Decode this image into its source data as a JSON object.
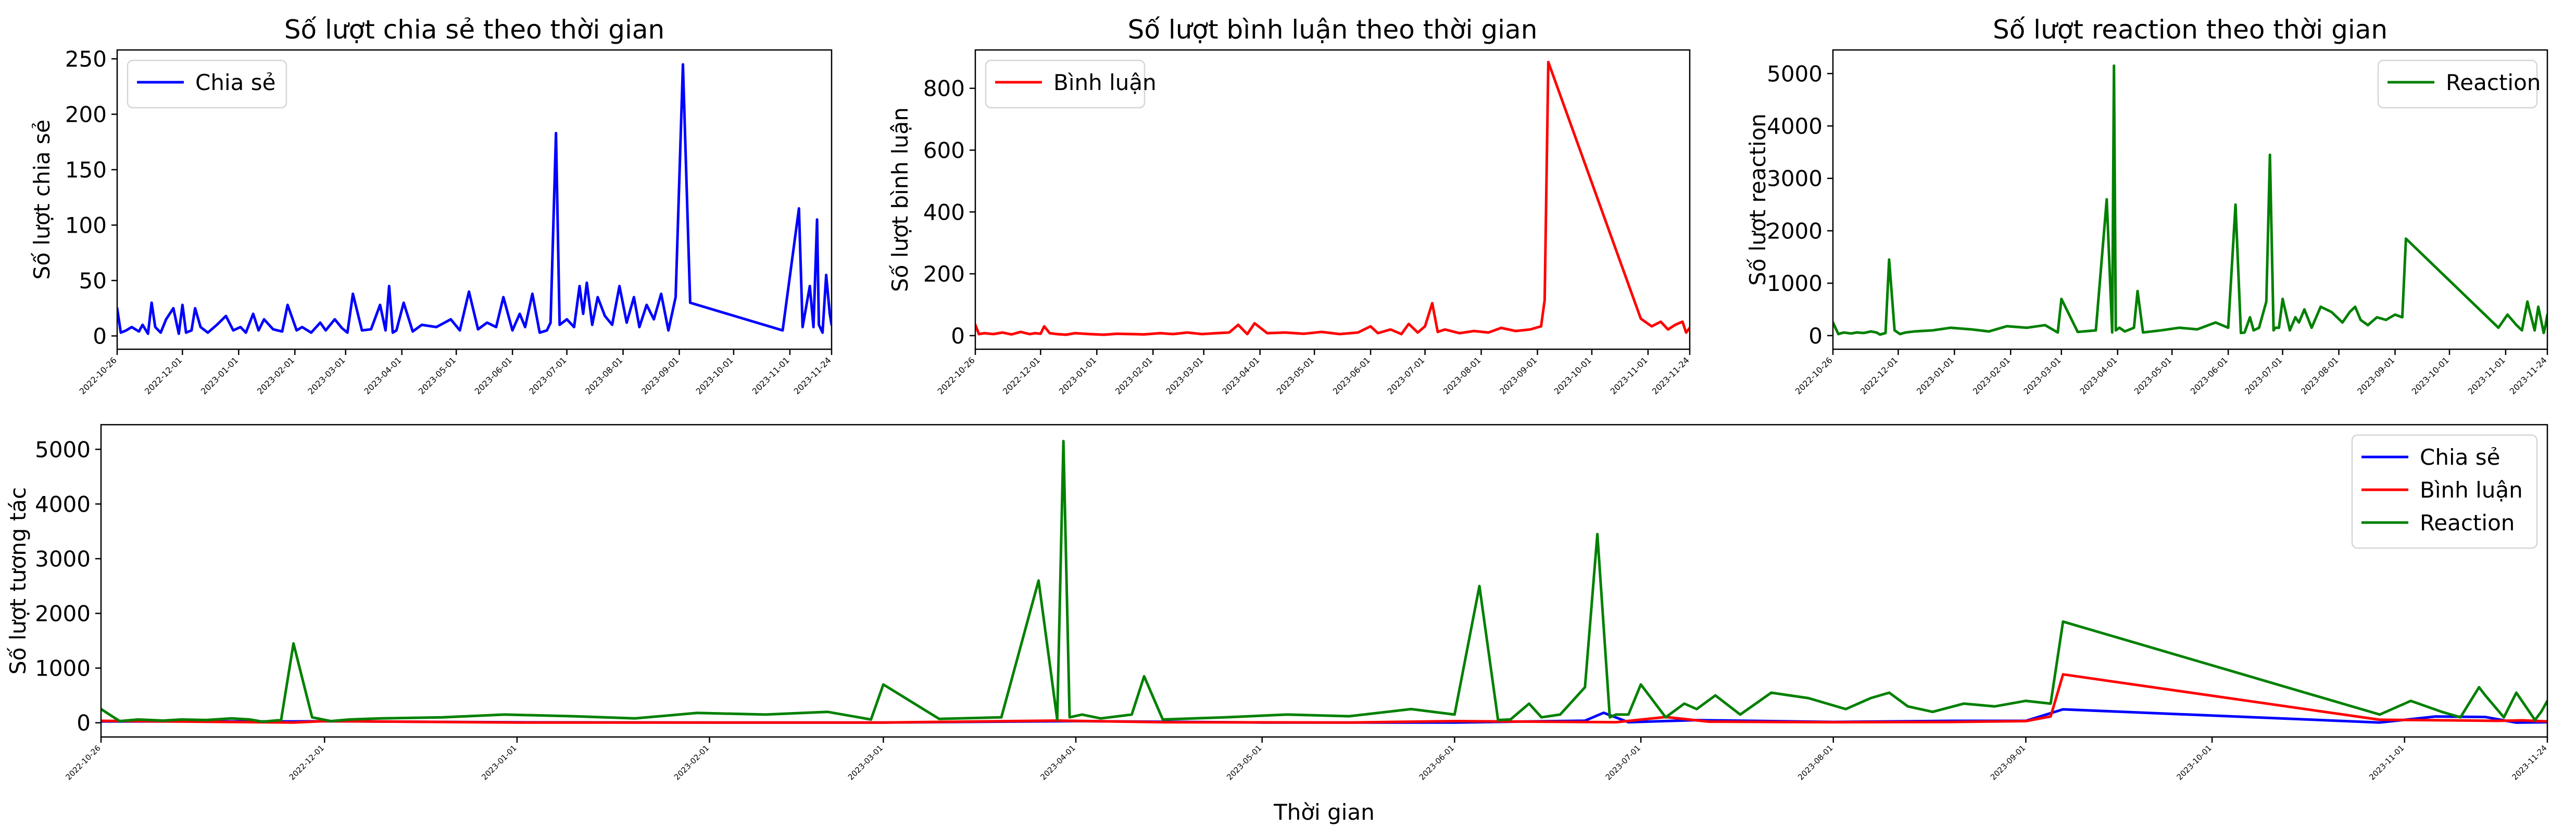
{
  "chart_data": [
    {
      "type": "line",
      "title": "Số lượt chia sẻ theo thời gian",
      "xlabel": "",
      "ylabel": "Số lượt chia sẻ",
      "xlim": [
        "2022-10-26",
        "2023-11-24"
      ],
      "ylim": [
        -12,
        258
      ],
      "yticks": [
        0,
        50,
        100,
        150,
        200,
        250
      ],
      "xticks": [
        "2022-10-26",
        "2022-12-01",
        "2023-01-01",
        "2023-02-01",
        "2023-03-01",
        "2023-04-01",
        "2023-05-01",
        "2023-06-01",
        "2023-07-01",
        "2023-08-01",
        "2023-09-01",
        "2023-10-01",
        "2023-11-01",
        "2023-11-24"
      ],
      "legend": "top-left",
      "grid": false,
      "series": [
        {
          "name": "Chia sẻ",
          "color": "#0000ff",
          "x": [
            "2022-10-26",
            "2022-10-28",
            "2022-10-31",
            "2022-11-03",
            "2022-11-07",
            "2022-11-09",
            "2022-11-12",
            "2022-11-14",
            "2022-11-16",
            "2022-11-19",
            "2022-11-22",
            "2022-11-26",
            "2022-11-29",
            "2022-12-01",
            "2022-12-03",
            "2022-12-06",
            "2022-12-08",
            "2022-12-11",
            "2022-12-15",
            "2022-12-20",
            "2022-12-25",
            "2022-12-29",
            "2023-01-02",
            "2023-01-05",
            "2023-01-09",
            "2023-01-12",
            "2023-01-15",
            "2023-01-20",
            "2023-01-25",
            "2023-01-28",
            "2023-02-02",
            "2023-02-05",
            "2023-02-10",
            "2023-02-15",
            "2023-02-18",
            "2023-02-23",
            "2023-02-27",
            "2023-03-02",
            "2023-03-05",
            "2023-03-10",
            "2023-03-15",
            "2023-03-20",
            "2023-03-23",
            "2023-03-25",
            "2023-03-27",
            "2023-03-29",
            "2023-04-02",
            "2023-04-07",
            "2023-04-12",
            "2023-04-20",
            "2023-04-28",
            "2023-05-03",
            "2023-05-08",
            "2023-05-13",
            "2023-05-18",
            "2023-05-23",
            "2023-05-27",
            "2023-06-01",
            "2023-06-05",
            "2023-06-08",
            "2023-06-12",
            "2023-06-16",
            "2023-06-20",
            "2023-06-22",
            "2023-06-25",
            "2023-06-27",
            "2023-07-01",
            "2023-07-05",
            "2023-07-08",
            "2023-07-10",
            "2023-07-12",
            "2023-07-15",
            "2023-07-18",
            "2023-07-22",
            "2023-07-26",
            "2023-07-30",
            "2023-08-03",
            "2023-08-07",
            "2023-08-10",
            "2023-08-14",
            "2023-08-18",
            "2023-08-22",
            "2023-08-26",
            "2023-08-30",
            "2023-09-03",
            "2023-09-07",
            "2023-10-28",
            "2023-11-06",
            "2023-11-08",
            "2023-11-12",
            "2023-11-14",
            "2023-11-16",
            "2023-11-17",
            "2023-11-19",
            "2023-11-21",
            "2023-11-23",
            "2023-11-24"
          ],
          "y": [
            25,
            3,
            5,
            8,
            4,
            10,
            2,
            30,
            8,
            3,
            15,
            25,
            2,
            28,
            3,
            5,
            25,
            8,
            3,
            10,
            18,
            5,
            8,
            3,
            20,
            5,
            15,
            6,
            4,
            28,
            5,
            8,
            3,
            12,
            5,
            15,
            7,
            3,
            38,
            5,
            6,
            28,
            5,
            45,
            3,
            5,
            30,
            4,
            10,
            8,
            15,
            5,
            40,
            6,
            12,
            8,
            35,
            5,
            20,
            8,
            38,
            3,
            5,
            12,
            183,
            10,
            15,
            8,
            45,
            20,
            48,
            10,
            35,
            18,
            10,
            45,
            12,
            35,
            8,
            28,
            15,
            38,
            5,
            35,
            245,
            30,
            5,
            115,
            8,
            45,
            8,
            105,
            10,
            3,
            55,
            20,
            10
          ]
        },
        {
          "name": "Bình luận",
          "color": "#ff0000",
          "x": [],
          "y": []
        },
        {
          "name": "Reaction",
          "color": "#008000",
          "x": [],
          "y": []
        }
      ]
    },
    {
      "type": "line",
      "title": "Số lượt bình luận theo thời gian",
      "xlabel": "",
      "ylabel": "Số lượt bình luận",
      "xlim": [
        "2022-10-26",
        "2023-11-24"
      ],
      "ylim": [
        -44,
        924
      ],
      "yticks": [
        0,
        200,
        400,
        600,
        800
      ],
      "xticks": [
        "2022-10-26",
        "2022-12-01",
        "2023-01-01",
        "2023-02-01",
        "2023-03-01",
        "2023-04-01",
        "2023-05-01",
        "2023-06-01",
        "2023-07-01",
        "2023-08-01",
        "2023-09-01",
        "2023-10-01",
        "2023-11-01",
        "2023-11-24"
      ],
      "legend": "top-left",
      "grid": false,
      "series": [
        {
          "name": "Bình luận",
          "color": "#ff0000",
          "x": [
            "2022-10-26",
            "2022-10-28",
            "2022-10-31",
            "2022-11-05",
            "2022-11-10",
            "2022-11-15",
            "2022-11-20",
            "2022-11-25",
            "2022-11-28",
            "2022-12-01",
            "2022-12-03",
            "2022-12-06",
            "2022-12-10",
            "2022-12-15",
            "2022-12-20",
            "2022-12-28",
            "2023-01-05",
            "2023-01-12",
            "2023-01-20",
            "2023-01-27",
            "2023-02-05",
            "2023-02-12",
            "2023-02-20",
            "2023-02-28",
            "2023-03-08",
            "2023-03-15",
            "2023-03-20",
            "2023-03-25",
            "2023-03-29",
            "2023-04-05",
            "2023-04-15",
            "2023-04-25",
            "2023-05-05",
            "2023-05-15",
            "2023-05-25",
            "2023-06-01",
            "2023-06-05",
            "2023-06-12",
            "2023-06-18",
            "2023-06-22",
            "2023-06-27",
            "2023-07-01",
            "2023-07-05",
            "2023-07-08",
            "2023-07-12",
            "2023-07-20",
            "2023-07-28",
            "2023-08-05",
            "2023-08-12",
            "2023-08-20",
            "2023-08-28",
            "2023-09-03",
            "2023-09-05",
            "2023-09-07",
            "2023-10-28",
            "2023-11-03",
            "2023-11-08",
            "2023-11-12",
            "2023-11-16",
            "2023-11-20",
            "2023-11-22",
            "2023-11-24"
          ],
          "y": [
            35,
            5,
            8,
            5,
            10,
            4,
            12,
            5,
            8,
            6,
            30,
            8,
            5,
            3,
            8,
            5,
            3,
            6,
            5,
            4,
            8,
            5,
            10,
            5,
            8,
            10,
            35,
            5,
            40,
            8,
            10,
            6,
            12,
            5,
            10,
            30,
            8,
            20,
            5,
            38,
            10,
            30,
            105,
            12,
            20,
            8,
            15,
            10,
            25,
            15,
            20,
            30,
            115,
            885,
            55,
            30,
            45,
            20,
            35,
            45,
            10,
            25
          ]
        },
        {
          "name": "Chia sẻ",
          "color": "#0000ff",
          "x": [],
          "y": []
        },
        {
          "name": "Reaction",
          "color": "#008000",
          "x": [],
          "y": []
        }
      ]
    },
    {
      "type": "line",
      "title": "Số lượt reaction theo thời gian",
      "xlabel": "",
      "ylabel": "Số lượt reaction",
      "xlim": [
        "2022-10-26",
        "2023-11-24"
      ],
      "ylim": [
        -260,
        5450
      ],
      "yticks": [
        0,
        1000,
        2000,
        3000,
        4000,
        5000
      ],
      "xticks": [
        "2022-10-26",
        "2022-12-01",
        "2023-01-01",
        "2023-02-01",
        "2023-03-01",
        "2023-04-01",
        "2023-05-01",
        "2023-06-01",
        "2023-07-01",
        "2023-08-01",
        "2023-09-01",
        "2023-10-01",
        "2023-11-01",
        "2023-11-24"
      ],
      "legend": "top-right",
      "grid": false,
      "series": [
        {
          "name": "Reaction",
          "color": "#008000",
          "x": [
            "2022-10-26",
            "2022-10-29",
            "2022-11-01",
            "2022-11-05",
            "2022-11-08",
            "2022-11-12",
            "2022-11-16",
            "2022-11-19",
            "2022-11-21",
            "2022-11-24",
            "2022-11-26",
            "2022-11-29",
            "2022-12-02",
            "2022-12-05",
            "2022-12-10",
            "2022-12-20",
            "2022-12-30",
            "2023-01-10",
            "2023-01-20",
            "2023-01-30",
            "2023-02-10",
            "2023-02-20",
            "2023-02-27",
            "2023-03-01",
            "2023-03-10",
            "2023-03-20",
            "2023-03-26",
            "2023-03-29",
            "2023-03-30",
            "2023-03-31",
            "2023-04-02",
            "2023-04-05",
            "2023-04-10",
            "2023-04-12",
            "2023-04-15",
            "2023-04-25",
            "2023-05-05",
            "2023-05-15",
            "2023-05-25",
            "2023-06-01",
            "2023-06-05",
            "2023-06-08",
            "2023-06-10",
            "2023-06-13",
            "2023-06-15",
            "2023-06-18",
            "2023-06-22",
            "2023-06-24",
            "2023-06-26",
            "2023-06-27",
            "2023-06-29",
            "2023-07-01",
            "2023-07-05",
            "2023-07-08",
            "2023-07-10",
            "2023-07-13",
            "2023-07-17",
            "2023-07-22",
            "2023-07-28",
            "2023-08-03",
            "2023-08-07",
            "2023-08-10",
            "2023-08-13",
            "2023-08-17",
            "2023-08-22",
            "2023-08-27",
            "2023-09-01",
            "2023-09-05",
            "2023-09-07",
            "2023-10-28",
            "2023-11-02",
            "2023-11-07",
            "2023-11-10",
            "2023-11-13",
            "2023-11-14",
            "2023-11-17",
            "2023-11-19",
            "2023-11-22",
            "2023-11-23",
            "2023-11-24"
          ],
          "y": [
            250,
            30,
            60,
            40,
            60,
            50,
            80,
            60,
            20,
            50,
            1450,
            100,
            30,
            60,
            80,
            100,
            150,
            120,
            80,
            180,
            150,
            200,
            60,
            700,
            70,
            100,
            2600,
            60,
            5150,
            100,
            150,
            80,
            150,
            850,
            60,
            100,
            150,
            120,
            250,
            150,
            2500,
            50,
            60,
            350,
            100,
            150,
            650,
            3450,
            100,
            150,
            150,
            700,
            100,
            350,
            250,
            500,
            150,
            550,
            450,
            250,
            450,
            550,
            300,
            200,
            350,
            300,
            400,
            350,
            1850,
            150,
            400,
            200,
            100,
            650,
            500,
            100,
            550,
            50,
            200,
            400
          ]
        },
        {
          "name": "Chia sẻ",
          "color": "#0000ff",
          "x": [],
          "y": []
        },
        {
          "name": "Bình luận",
          "color": "#ff0000",
          "x": [],
          "y": []
        }
      ]
    },
    {
      "type": "line",
      "title": "",
      "xlabel": "Thời gian",
      "ylabel": "Số lượt tương tác",
      "xlim": [
        "2022-10-26",
        "2023-11-24"
      ],
      "ylim": [
        -260,
        5450
      ],
      "yticks": [
        0,
        1000,
        2000,
        3000,
        4000,
        5000
      ],
      "xticks": [
        "2022-10-26",
        "2022-12-01",
        "2023-01-01",
        "2023-02-01",
        "2023-03-01",
        "2023-04-01",
        "2023-05-01",
        "2023-06-01",
        "2023-07-01",
        "2023-08-01",
        "2023-09-01",
        "2023-10-01",
        "2023-11-01",
        "2023-11-24"
      ],
      "legend": "top-right",
      "grid": false,
      "series": [
        {
          "name": "Chia sẻ",
          "color": "#0000ff",
          "x": [
            "2022-10-26",
            "2022-11-26",
            "2022-12-01",
            "2023-01-01",
            "2023-02-01",
            "2023-03-01",
            "2023-04-01",
            "2023-05-01",
            "2023-06-01",
            "2023-06-22",
            "2023-06-25",
            "2023-06-29",
            "2023-07-10",
            "2023-08-01",
            "2023-08-20",
            "2023-09-01",
            "2023-09-07",
            "2023-10-28",
            "2023-11-06",
            "2023-11-14",
            "2023-11-19",
            "2023-11-24"
          ],
          "y": [
            25,
            25,
            28,
            8,
            5,
            5,
            30,
            5,
            5,
            38,
            183,
            10,
            48,
            15,
            35,
            35,
            245,
            5,
            115,
            105,
            3,
            10
          ]
        },
        {
          "name": "Bình luận",
          "color": "#ff0000",
          "x": [
            "2022-10-26",
            "2022-11-26",
            "2022-12-01",
            "2023-01-01",
            "2023-02-01",
            "2023-03-01",
            "2023-03-29",
            "2023-04-15",
            "2023-05-15",
            "2023-06-01",
            "2023-06-27",
            "2023-07-05",
            "2023-07-12",
            "2023-08-01",
            "2023-08-20",
            "2023-09-01",
            "2023-09-05",
            "2023-09-07",
            "2023-10-28",
            "2023-11-08",
            "2023-11-16",
            "2023-11-20",
            "2023-11-24"
          ],
          "y": [
            35,
            5,
            30,
            5,
            5,
            5,
            40,
            10,
            5,
            30,
            10,
            105,
            20,
            10,
            15,
            30,
            115,
            885,
            55,
            45,
            35,
            45,
            25
          ]
        },
        {
          "name": "Reaction",
          "color": "#008000",
          "x": [
            "2022-10-26",
            "2022-10-29",
            "2022-11-01",
            "2022-11-05",
            "2022-11-08",
            "2022-11-12",
            "2022-11-16",
            "2022-11-19",
            "2022-11-21",
            "2022-11-24",
            "2022-11-26",
            "2022-11-29",
            "2022-12-02",
            "2022-12-05",
            "2022-12-10",
            "2022-12-20",
            "2022-12-30",
            "2023-01-10",
            "2023-01-20",
            "2023-01-30",
            "2023-02-10",
            "2023-02-20",
            "2023-02-27",
            "2023-03-01",
            "2023-03-10",
            "2023-03-20",
            "2023-03-26",
            "2023-03-29",
            "2023-03-30",
            "2023-03-31",
            "2023-04-02",
            "2023-04-05",
            "2023-04-10",
            "2023-04-12",
            "2023-04-15",
            "2023-04-25",
            "2023-05-05",
            "2023-05-15",
            "2023-05-25",
            "2023-06-01",
            "2023-06-05",
            "2023-06-08",
            "2023-06-10",
            "2023-06-13",
            "2023-06-15",
            "2023-06-18",
            "2023-06-22",
            "2023-06-24",
            "2023-06-26",
            "2023-06-27",
            "2023-06-29",
            "2023-07-01",
            "2023-07-05",
            "2023-07-08",
            "2023-07-10",
            "2023-07-13",
            "2023-07-17",
            "2023-07-22",
            "2023-07-28",
            "2023-08-03",
            "2023-08-07",
            "2023-08-10",
            "2023-08-13",
            "2023-08-17",
            "2023-08-22",
            "2023-08-27",
            "2023-09-01",
            "2023-09-05",
            "2023-09-07",
            "2023-10-28",
            "2023-11-02",
            "2023-11-07",
            "2023-11-10",
            "2023-11-13",
            "2023-11-14",
            "2023-11-17",
            "2023-11-19",
            "2023-11-22",
            "2023-11-23",
            "2023-11-24"
          ],
          "y": [
            250,
            30,
            60,
            40,
            60,
            50,
            80,
            60,
            20,
            50,
            1450,
            100,
            30,
            60,
            80,
            100,
            150,
            120,
            80,
            180,
            150,
            200,
            60,
            700,
            70,
            100,
            2600,
            60,
            5150,
            100,
            150,
            80,
            150,
            850,
            60,
            100,
            150,
            120,
            250,
            150,
            2500,
            50,
            60,
            350,
            100,
            150,
            650,
            3450,
            100,
            150,
            150,
            700,
            100,
            350,
            250,
            500,
            150,
            550,
            450,
            250,
            450,
            550,
            300,
            200,
            350,
            300,
            400,
            350,
            1850,
            150,
            400,
            200,
            100,
            650,
            500,
            100,
            550,
            50,
            200,
            400
          ]
        }
      ]
    }
  ]
}
